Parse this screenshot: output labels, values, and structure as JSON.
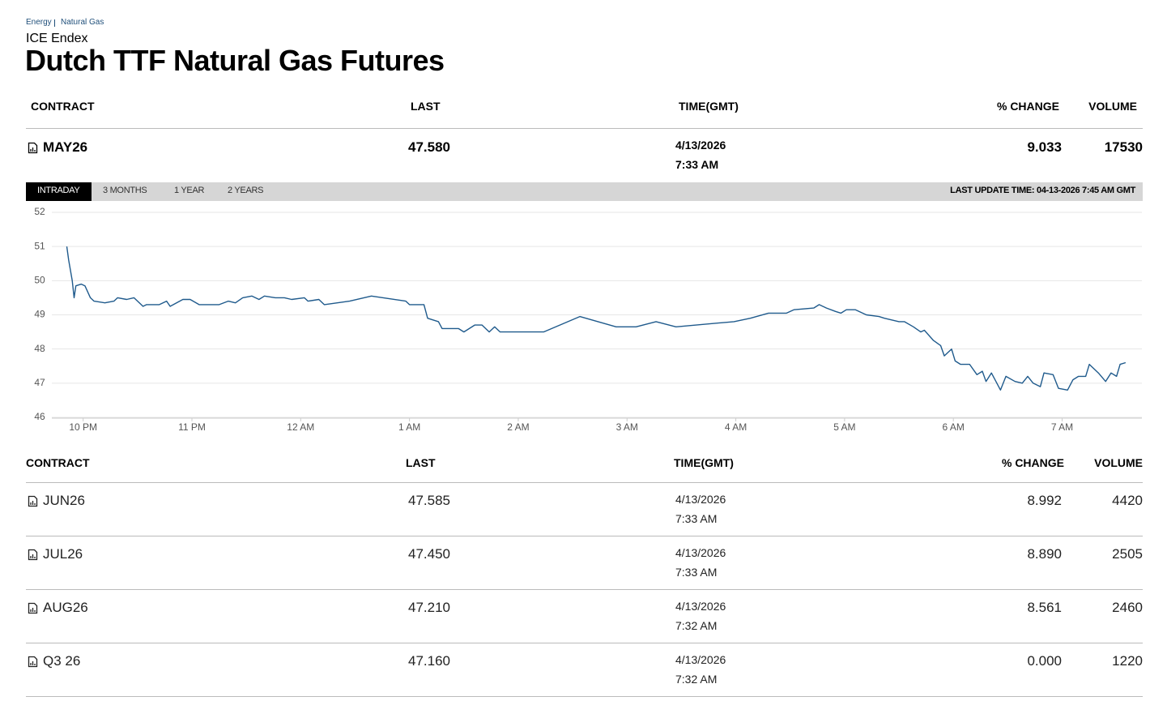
{
  "breadcrumb": [
    "Energy",
    "Natural Gas"
  ],
  "exchange": "ICE Endex",
  "title": "Dutch TTF Natural Gas Futures",
  "columns": [
    "CONTRACT",
    "LAST",
    "TIME(GMT)",
    "% CHANGE",
    "VOLUME"
  ],
  "front_contract": {
    "contract": "MAY26",
    "last": "47.580",
    "date": "4/13/2026",
    "time": "7:33 AM",
    "change": "9.033",
    "volume": "17530"
  },
  "tabs": [
    "INTRADAY",
    "3 MONTHS",
    "1 YEAR",
    "2 YEARS"
  ],
  "active_tab": 0,
  "last_update": "LAST UPDATE TIME: 04-13-2026 7:45 AM GMT",
  "chart_data": {
    "type": "line",
    "color": "#1f5a8c",
    "grid": true,
    "x": [
      "21:51",
      "21:52",
      "21:54",
      "21:55",
      "21:56",
      "21:59",
      "22:01",
      "22:04",
      "22:06",
      "22:12",
      "22:17",
      "22:19",
      "22:24",
      "22:28",
      "22:33",
      "22:35",
      "22:42",
      "22:46",
      "22:48",
      "22:55",
      "22:59",
      "23:04",
      "23:15",
      "23:20",
      "23:24",
      "23:28",
      "23:33",
      "23:37",
      "23:40",
      "23:46",
      "23:51",
      "23:55",
      "00:02",
      "00:04",
      "00:10",
      "00:13",
      "00:27",
      "00:39",
      "00:58",
      "01:00",
      "01:08",
      "01:10",
      "01:16",
      "01:18",
      "01:27",
      "01:30",
      "01:36",
      "01:40",
      "01:44",
      "01:47",
      "01:50",
      "02:00",
      "02:14",
      "02:34",
      "02:54",
      "03:05",
      "03:16",
      "03:27",
      "03:59",
      "04:08",
      "04:18",
      "04:28",
      "04:32",
      "04:43",
      "04:46",
      "04:50",
      "04:55",
      "04:58",
      "05:01",
      "05:06",
      "05:12",
      "05:19",
      "05:22",
      "05:30",
      "05:33",
      "05:38",
      "05:42",
      "05:44",
      "05:49",
      "05:53",
      "05:55",
      "05:59",
      "06:01",
      "06:04",
      "06:09",
      "06:13",
      "06:16",
      "06:18",
      "06:21",
      "06:26",
      "06:29",
      "06:34",
      "06:38",
      "06:41",
      "06:44",
      "06:48",
      "06:50",
      "06:55",
      "06:58",
      "07:03",
      "07:06",
      "07:09",
      "07:13",
      "07:15",
      "07:20",
      "07:24",
      "07:27",
      "07:30",
      "07:32",
      "07:35"
    ],
    "values": [
      51.0,
      50.6,
      50.0,
      49.5,
      49.85,
      49.9,
      49.85,
      49.5,
      49.4,
      49.35,
      49.4,
      49.5,
      49.45,
      49.5,
      49.25,
      49.3,
      49.3,
      49.4,
      49.25,
      49.45,
      49.45,
      49.3,
      49.3,
      49.4,
      49.35,
      49.5,
      49.55,
      49.45,
      49.55,
      49.5,
      49.5,
      49.45,
      49.5,
      49.4,
      49.45,
      49.3,
      49.4,
      49.55,
      49.4,
      49.3,
      49.3,
      48.9,
      48.8,
      48.6,
      48.6,
      48.5,
      48.7,
      48.7,
      48.5,
      48.65,
      48.5,
      48.5,
      48.5,
      48.95,
      48.65,
      48.65,
      48.8,
      48.65,
      48.8,
      48.9,
      49.05,
      49.05,
      49.15,
      49.2,
      49.3,
      49.2,
      49.1,
      49.05,
      49.15,
      49.15,
      49.0,
      48.95,
      48.9,
      48.8,
      48.8,
      48.65,
      48.5,
      48.55,
      48.25,
      48.1,
      47.8,
      48.0,
      47.65,
      47.55,
      47.55,
      47.25,
      47.35,
      47.05,
      47.3,
      46.8,
      47.2,
      47.05,
      47.0,
      47.2,
      47.0,
      46.9,
      47.3,
      47.25,
      46.85,
      46.8,
      47.1,
      47.2,
      47.2,
      47.55,
      47.3,
      47.05,
      47.3,
      47.2,
      47.55,
      47.6
    ],
    "xlim": [
      "21:32",
      "07:44"
    ],
    "xticks": [
      {
        "value": "22:00",
        "label": "10 PM"
      },
      {
        "value": "23:00",
        "label": "11 PM"
      },
      {
        "value": "00:00",
        "label": "12 AM"
      },
      {
        "value": "01:00",
        "label": "1 AM"
      },
      {
        "value": "02:00",
        "label": "2 AM"
      },
      {
        "value": "03:00",
        "label": "3 AM"
      },
      {
        "value": "04:00",
        "label": "4 AM"
      },
      {
        "value": "05:00",
        "label": "5 AM"
      },
      {
        "value": "06:00",
        "label": "6 AM"
      },
      {
        "value": "07:00",
        "label": "7 AM"
      }
    ],
    "ylim": [
      46,
      52
    ],
    "yticks": [
      46,
      47,
      48,
      49,
      50,
      51,
      52
    ]
  },
  "contracts": [
    {
      "contract": "JUN26",
      "last": "47.585",
      "date": "4/13/2026",
      "time": "7:33 AM",
      "change": "8.992",
      "volume": "4420"
    },
    {
      "contract": "JUL26",
      "last": "47.450",
      "date": "4/13/2026",
      "time": "7:33 AM",
      "change": "8.890",
      "volume": "2505"
    },
    {
      "contract": "AUG26",
      "last": "47.210",
      "date": "4/13/2026",
      "time": "7:32 AM",
      "change": "8.561",
      "volume": "2460"
    },
    {
      "contract": "Q3 26",
      "last": "47.160",
      "date": "4/13/2026",
      "time": "7:32 AM",
      "change": "0.000",
      "volume": "1220"
    }
  ]
}
